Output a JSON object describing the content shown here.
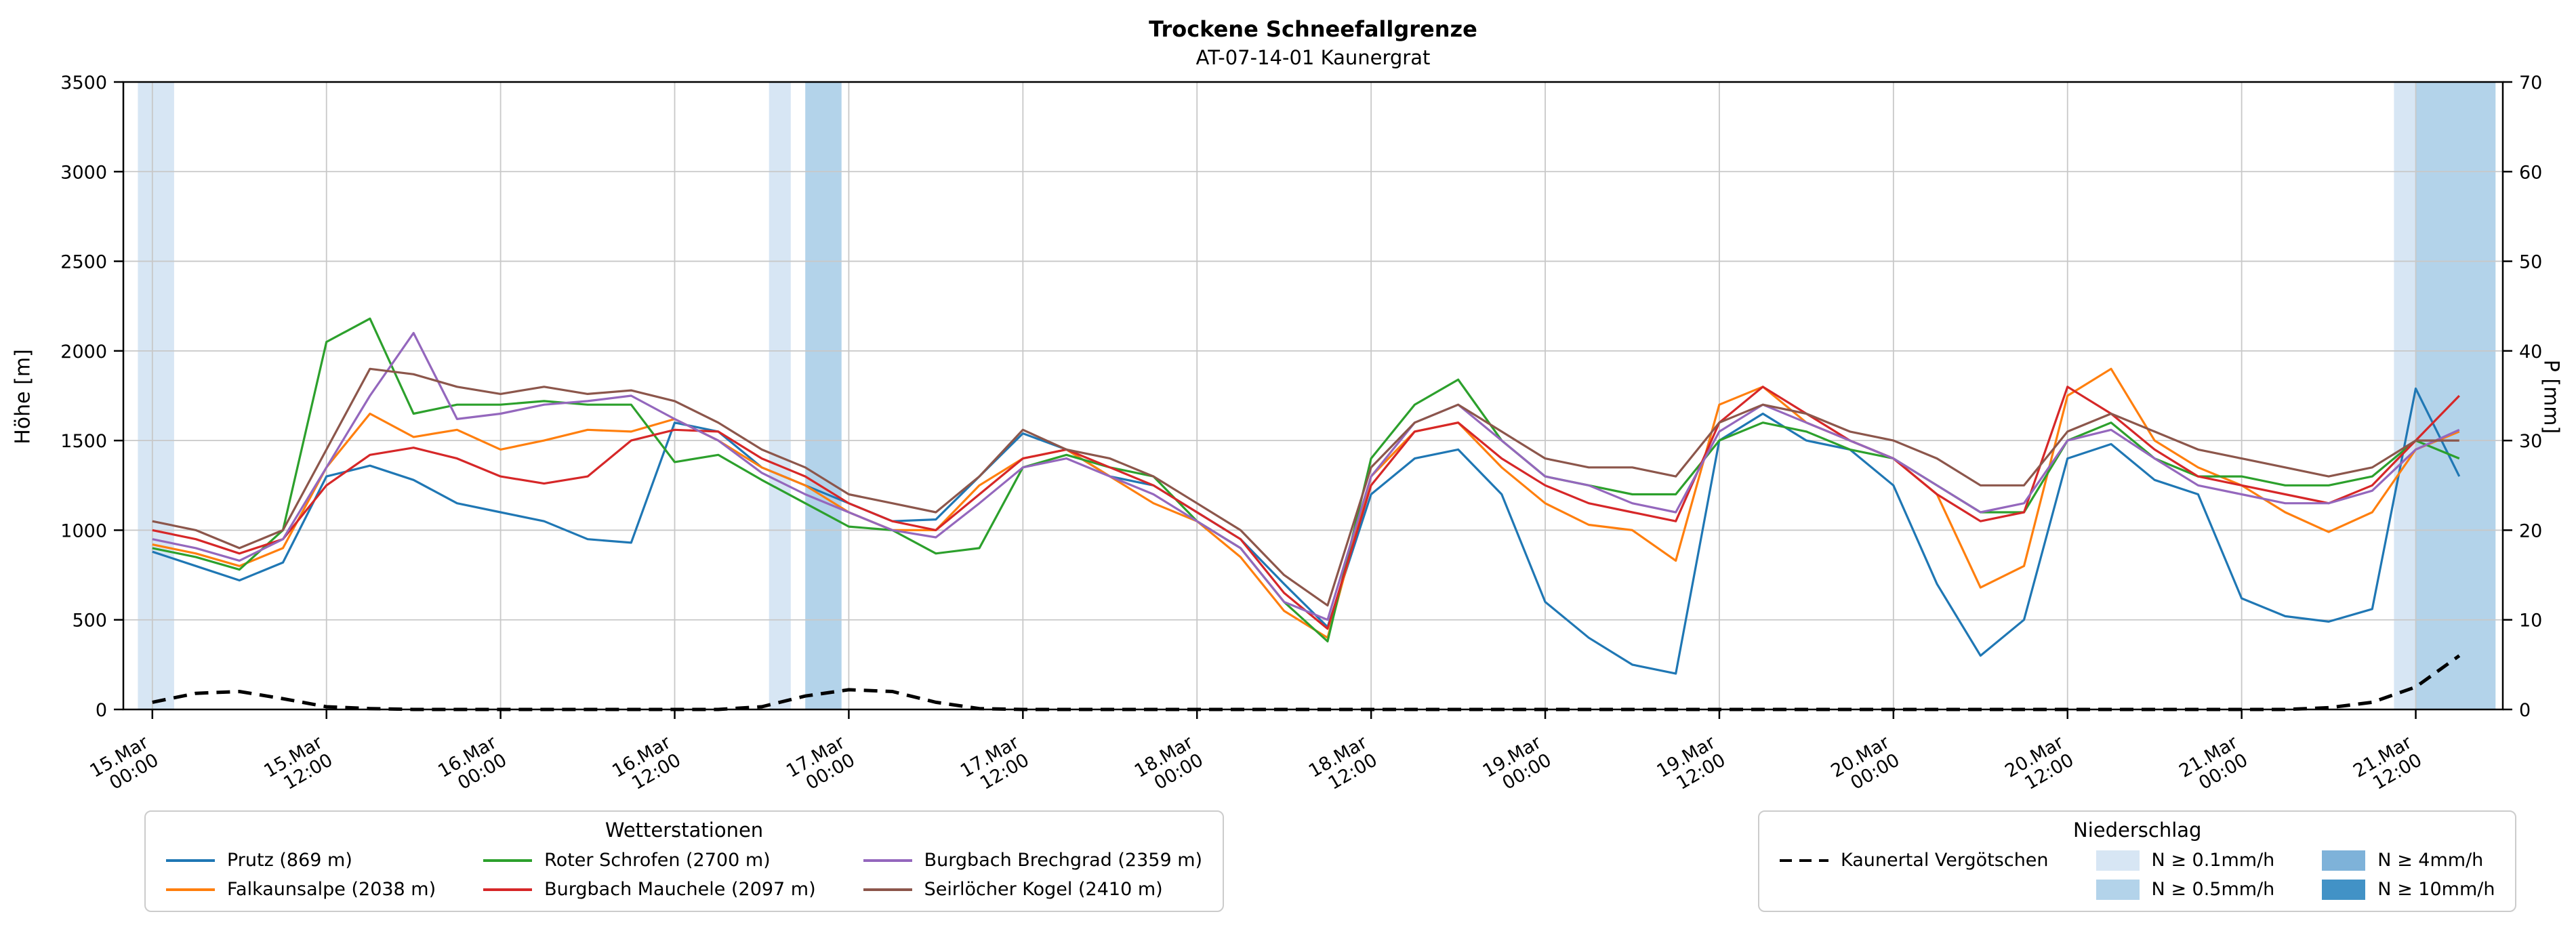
{
  "header": {
    "title": "Trockene Schneefallgrenze",
    "subtitle": "AT-07-14-01 Kaunergrat"
  },
  "chart_data": {
    "type": "line",
    "title": "Trockene Schneefallgrenze",
    "subtitle": "AT-07-14-01 Kaunergrat",
    "ylabel_left": "Höhe [m]",
    "ylabel_right": "P [mm]",
    "ylim_left": [
      0,
      3500
    ],
    "ylim_right": [
      0,
      70
    ],
    "yticks_left": [
      0,
      500,
      1000,
      1500,
      2000,
      2500,
      3000,
      3500
    ],
    "yticks_right": [
      0,
      10,
      20,
      30,
      40,
      50,
      60,
      70
    ],
    "grid": true,
    "x_unit": "hours since 15.Mar 00:00",
    "x_start_hour": 0,
    "x_step_hours": 3,
    "xlim": [
      -2,
      162
    ],
    "xticks": [
      {
        "hour": 0,
        "label": [
          "15.Mar",
          "00:00"
        ]
      },
      {
        "hour": 12,
        "label": [
          "15.Mar",
          "12:00"
        ]
      },
      {
        "hour": 24,
        "label": [
          "16.Mar",
          "00:00"
        ]
      },
      {
        "hour": 36,
        "label": [
          "16.Mar",
          "12:00"
        ]
      },
      {
        "hour": 48,
        "label": [
          "17.Mar",
          "00:00"
        ]
      },
      {
        "hour": 60,
        "label": [
          "17.Mar",
          "12:00"
        ]
      },
      {
        "hour": 72,
        "label": [
          "18.Mar",
          "00:00"
        ]
      },
      {
        "hour": 84,
        "label": [
          "18.Mar",
          "12:00"
        ]
      },
      {
        "hour": 96,
        "label": [
          "19.Mar",
          "00:00"
        ]
      },
      {
        "hour": 108,
        "label": [
          "19.Mar",
          "12:00"
        ]
      },
      {
        "hour": 120,
        "label": [
          "20.Mar",
          "00:00"
        ]
      },
      {
        "hour": 132,
        "label": [
          "20.Mar",
          "12:00"
        ]
      },
      {
        "hour": 144,
        "label": [
          "21.Mar",
          "00:00"
        ]
      },
      {
        "hour": 156,
        "label": [
          "21.Mar",
          "12:00"
        ]
      }
    ],
    "series": [
      {
        "name": "Prutz (869 m)",
        "color": "#1f77b4",
        "values": [
          880,
          800,
          720,
          820,
          1300,
          1360,
          1280,
          1150,
          1100,
          1050,
          950,
          930,
          1600,
          1550,
          1350,
          1250,
          1150,
          1050,
          1060,
          1300,
          1540,
          1450,
          1300,
          1250,
          1100,
          950,
          700,
          460,
          1200,
          1400,
          1450,
          1200,
          600,
          400,
          250,
          200,
          1500,
          1650,
          1500,
          1450,
          1250,
          700,
          300,
          500,
          1400,
          1480,
          1280,
          1200,
          620,
          520,
          490,
          560,
          1790,
          1300
        ]
      },
      {
        "name": "Falkaunsalpe (2038 m)",
        "color": "#ff7f0e",
        "values": [
          920,
          870,
          800,
          900,
          1350,
          1650,
          1520,
          1560,
          1450,
          1500,
          1560,
          1550,
          1620,
          1500,
          1350,
          1250,
          1100,
          1000,
          1000,
          1250,
          1400,
          1450,
          1300,
          1150,
          1050,
          850,
          550,
          400,
          1300,
          1550,
          1600,
          1350,
          1150,
          1030,
          1000,
          830,
          1700,
          1800,
          1600,
          1500,
          1400,
          1200,
          680,
          800,
          1750,
          1900,
          1500,
          1350,
          1250,
          1100,
          990,
          1100,
          1450,
          1550
        ]
      },
      {
        "name": "Roter Schrofen (2700 m)",
        "color": "#2ca02c",
        "values": [
          900,
          850,
          780,
          1000,
          2050,
          2180,
          1650,
          1700,
          1700,
          1720,
          1700,
          1700,
          1380,
          1420,
          1280,
          1150,
          1020,
          1000,
          870,
          900,
          1350,
          1420,
          1350,
          1300,
          1050,
          900,
          600,
          380,
          1400,
          1700,
          1840,
          1500,
          1300,
          1250,
          1200,
          1200,
          1500,
          1600,
          1550,
          1450,
          1400,
          1250,
          1100,
          1100,
          1500,
          1600,
          1400,
          1300,
          1300,
          1250,
          1250,
          1300,
          1500,
          1400
        ]
      },
      {
        "name": "Burgbach Mauchele (2097 m)",
        "color": "#d62728",
        "values": [
          1000,
          950,
          870,
          950,
          1250,
          1420,
          1460,
          1400,
          1300,
          1260,
          1300,
          1500,
          1560,
          1550,
          1400,
          1300,
          1150,
          1050,
          1000,
          1200,
          1400,
          1450,
          1350,
          1250,
          1100,
          950,
          650,
          450,
          1250,
          1550,
          1600,
          1400,
          1250,
          1150,
          1100,
          1050,
          1600,
          1800,
          1650,
          1500,
          1400,
          1200,
          1050,
          1100,
          1800,
          1650,
          1450,
          1300,
          1250,
          1200,
          1150,
          1250,
          1500,
          1750
        ]
      },
      {
        "name": "Burgbach Brechgrad (2359 m)",
        "color": "#9467bd",
        "values": [
          950,
          900,
          830,
          950,
          1350,
          1750,
          2100,
          1620,
          1650,
          1700,
          1720,
          1750,
          1620,
          1500,
          1320,
          1200,
          1100,
          1000,
          960,
          1150,
          1350,
          1400,
          1300,
          1200,
          1050,
          900,
          600,
          500,
          1300,
          1600,
          1700,
          1500,
          1300,
          1250,
          1150,
          1100,
          1550,
          1700,
          1600,
          1500,
          1400,
          1250,
          1100,
          1150,
          1500,
          1560,
          1400,
          1250,
          1200,
          1150,
          1150,
          1220,
          1450,
          1560
        ]
      },
      {
        "name": "Seirlöcher Kogel (2410 m)",
        "color": "#8c564b",
        "values": [
          1050,
          1000,
          900,
          1000,
          1450,
          1900,
          1870,
          1800,
          1760,
          1800,
          1760,
          1780,
          1720,
          1600,
          1450,
          1350,
          1200,
          1150,
          1100,
          1300,
          1560,
          1450,
          1400,
          1300,
          1150,
          1000,
          750,
          580,
          1350,
          1600,
          1700,
          1550,
          1400,
          1350,
          1350,
          1300,
          1600,
          1700,
          1650,
          1550,
          1500,
          1400,
          1250,
          1250,
          1550,
          1650,
          1550,
          1450,
          1400,
          1350,
          1300,
          1350,
          1500,
          1500
        ]
      }
    ],
    "precipitation_line": {
      "name": "Kaunertal Vergötschen",
      "color": "#000000",
      "style": "dashed",
      "axis": "right",
      "values": [
        0.8,
        1.8,
        2.0,
        1.2,
        0.3,
        0.1,
        0,
        0,
        0,
        0,
        0,
        0,
        0,
        0,
        0.3,
        1.5,
        2.2,
        2.0,
        0.8,
        0.1,
        0,
        0,
        0,
        0,
        0,
        0,
        0,
        0,
        0,
        0,
        0,
        0,
        0,
        0,
        0,
        0,
        0,
        0,
        0,
        0,
        0,
        0,
        0,
        0,
        0,
        0,
        0,
        0,
        0,
        0,
        0.2,
        0.8,
        2.5,
        6.0
      ]
    },
    "precipitation_bands": [
      {
        "start_hour": -1,
        "end_hour": 1.5,
        "level": "0.1"
      },
      {
        "start_hour": 42.5,
        "end_hour": 44,
        "level": "0.1"
      },
      {
        "start_hour": 45,
        "end_hour": 47.5,
        "level": "0.5"
      },
      {
        "start_hour": 154.5,
        "end_hour": 156,
        "level": "0.1"
      },
      {
        "start_hour": 156,
        "end_hour": 161.5,
        "level": "0.5"
      }
    ]
  },
  "legend_stations": {
    "title": "Wetterstationen"
  },
  "legend_precip": {
    "title": "Niederschlag",
    "band_items": [
      {
        "level": "0.1",
        "label": "N ≥ 0.1mm/h",
        "color": "#d7e6f4"
      },
      {
        "level": "0.5",
        "label": "N ≥ 0.5mm/h",
        "color": "#b3d3ea"
      },
      {
        "level": "4",
        "label": "N ≥ 4mm/h",
        "color": "#7eb2d9"
      },
      {
        "level": "10",
        "label": "N ≥ 10mm/h",
        "color": "#4292c6"
      }
    ]
  }
}
